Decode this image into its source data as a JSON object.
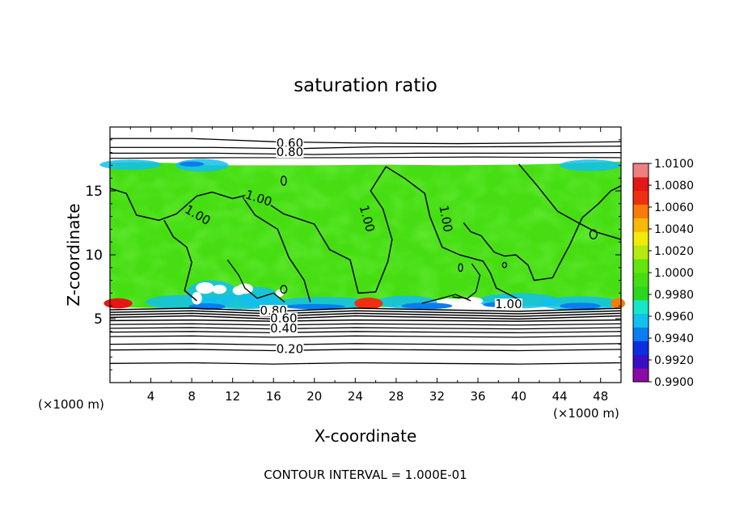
{
  "chart_data": {
    "type": "heatmap",
    "title": "saturation ratio",
    "xlabel": "X-coordinate",
    "ylabel": "Z-coordinate",
    "x_unit": "(×1000 m)",
    "z_unit": "(×1000 m)",
    "footer": "CONTOUR INTERVAL = 1.000E-01",
    "xlim": [
      0,
      50
    ],
    "zlim": [
      0,
      20
    ],
    "x_ticks": [
      "4",
      "8",
      "12",
      "16",
      "20",
      "24",
      "28",
      "32",
      "36",
      "40",
      "44",
      "48"
    ],
    "z_ticks": [
      "5",
      "10",
      "15"
    ],
    "colorbar": {
      "min": 0.99,
      "max": 1.01,
      "labels": [
        "1.0100",
        "1.0080",
        "1.0060",
        "1.0040",
        "1.0020",
        "1.0000",
        "0.9980",
        "0.9960",
        "0.9940",
        "0.9920",
        "0.9900"
      ],
      "colors": [
        "#8b0aa5",
        "#3a0fc4",
        "#0a2ee0",
        "#0a7df0",
        "#12c0ee",
        "#16e6c6",
        "#2cd81e",
        "#46de12",
        "#62e40e",
        "#b4ea0e",
        "#f2ea0a",
        "#f7b80a",
        "#f77a0a",
        "#ef3010",
        "#e41616",
        "#f08080"
      ]
    },
    "cloud_layer": {
      "bottom_km": 5.8,
      "top_km": 17.2,
      "base_value": 1.0
    },
    "contour_labels": [
      {
        "text": "0.60",
        "x": 17.6,
        "z": 18.6
      },
      {
        "text": "0.80",
        "x": 17.6,
        "z": 17.9
      },
      {
        "text": "1.00",
        "x": 14.5,
        "z": 14.3
      },
      {
        "text": "1.00",
        "x": 8.5,
        "z": 13.0
      },
      {
        "text": "1.00",
        "x": 25.0,
        "z": 12.8
      },
      {
        "text": "1.00",
        "x": 32.7,
        "z": 12.8
      },
      {
        "text": "1.00",
        "x": 39.0,
        "z": 6.0
      },
      {
        "text": "0.80",
        "x": 16.0,
        "z": 5.5
      },
      {
        "text": "0.60",
        "x": 17.0,
        "z": 4.9
      },
      {
        "text": "0.40",
        "x": 17.0,
        "z": 4.1
      },
      {
        "text": "0.20",
        "x": 17.6,
        "z": 2.5
      }
    ]
  }
}
